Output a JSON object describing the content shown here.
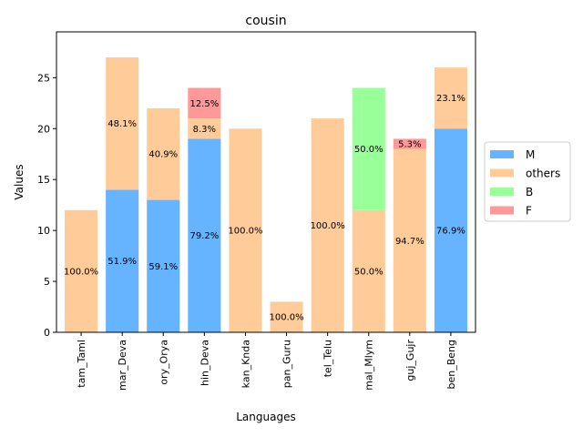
{
  "chart_data": {
    "type": "bar",
    "stacked": true,
    "title": "cousin",
    "xlabel": "Languages",
    "ylabel": "Values",
    "ylim": [
      0,
      29.5
    ],
    "yticks": [
      "0",
      "5",
      "10",
      "15",
      "20",
      "25"
    ],
    "categories": [
      "tam_Taml",
      "mar_Deva",
      "ory_Orya",
      "hin_Deva",
      "kan_Knda",
      "pan_Guru",
      "tel_Telu",
      "mal_Mlym",
      "guj_Gujr",
      "ben_Beng"
    ],
    "series": [
      {
        "name": "M",
        "color": "#66b3ff",
        "values": [
          0,
          14,
          13,
          19,
          0,
          0,
          0,
          0,
          0,
          20
        ],
        "labels": [
          "",
          "51.9%",
          "59.1%",
          "79.2%",
          "",
          "",
          "",
          "",
          "",
          "76.9%"
        ]
      },
      {
        "name": "others",
        "color": "#ffcc99",
        "values": [
          12,
          13,
          9,
          2,
          20,
          3,
          21,
          12,
          18,
          6
        ],
        "labels": [
          "100.0%",
          "48.1%",
          "40.9%",
          "8.3%",
          "100.0%",
          "100.0%",
          "100.0%",
          "50.0%",
          "94.7%",
          "23.1%"
        ]
      },
      {
        "name": "B",
        "color": "#99ff99",
        "values": [
          0,
          0,
          0,
          0,
          0,
          0,
          0,
          12,
          0,
          0
        ],
        "labels": [
          "",
          "",
          "",
          "",
          "",
          "",
          "",
          "50.0%",
          "",
          ""
        ]
      },
      {
        "name": "F",
        "color": "#ff9999",
        "values": [
          0,
          0,
          0,
          3,
          0,
          0,
          0,
          0,
          1,
          0
        ],
        "labels": [
          "",
          "",
          "",
          "12.5%",
          "",
          "",
          "",
          "",
          "5.3%",
          ""
        ]
      }
    ],
    "legend": "right",
    "grid": false
  }
}
